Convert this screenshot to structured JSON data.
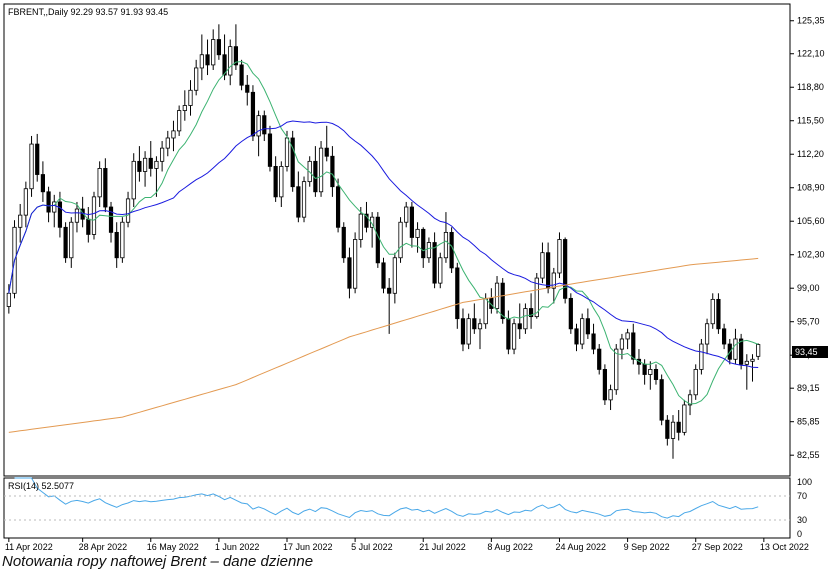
{
  "caption": "Notowania ropy naftowej Brent – dane dzienne",
  "colors": {
    "bull": "#ffffff",
    "bear": "#000000",
    "ma_short": "#3cb371",
    "ma_mid": "#1a1adf",
    "ma_long": "#e39a52",
    "rsi": "#4aa8e8"
  },
  "chart_data": [
    {
      "type": "candlestick",
      "header": "FBRENT,,Daily  92.29 93.57 91.93 93.45",
      "last_price_label": "93,45",
      "ylim": [
        80.5,
        127.0
      ],
      "y_ticks": [
        "125,35",
        "122,10",
        "118,80",
        "115,50",
        "112,20",
        "108,90",
        "105,60",
        "102,30",
        "99,00",
        "95,70",
        "92,40",
        "89,15",
        "85,85",
        "82,55"
      ],
      "x_ticks": [
        "11 Apr 2022",
        "28 Apr 2022",
        "16 May 2022",
        "1 Jun 2022",
        "17 Jun 2022",
        "5 Jul 2022",
        "21 Jul 2022",
        "8 Aug 2022",
        "24 Aug 2022",
        "9 Sep 2022",
        "27 Sep 2022",
        "13 Oct 2022"
      ],
      "x_tick_index": [
        0,
        13,
        25,
        37,
        49,
        61,
        73,
        85,
        97,
        109,
        121,
        133
      ],
      "ohlc": [
        [
          97.2,
          99.4,
          96.5,
          98.5
        ],
        [
          98.5,
          105.7,
          98.0,
          105.0
        ],
        [
          105.0,
          107.3,
          103.5,
          106.2
        ],
        [
          106.2,
          109.5,
          105.0,
          108.8
        ],
        [
          108.8,
          114.0,
          108.0,
          113.2
        ],
        [
          113.2,
          114.2,
          109.5,
          110.2
        ],
        [
          110.2,
          111.5,
          107.5,
          108.5
        ],
        [
          108.5,
          109.0,
          105.5,
          106.5
        ],
        [
          106.5,
          108.2,
          105.0,
          107.5
        ],
        [
          107.5,
          108.5,
          104.0,
          105.0
        ],
        [
          105.0,
          105.5,
          101.5,
          102.0
        ],
        [
          102.0,
          106.0,
          101.0,
          105.5
        ],
        [
          105.5,
          107.5,
          104.5,
          106.8
        ],
        [
          106.8,
          108.0,
          105.0,
          105.8
        ],
        [
          105.8,
          107.0,
          103.5,
          104.3
        ],
        [
          104.3,
          108.5,
          103.8,
          108.0
        ],
        [
          108.0,
          111.5,
          107.0,
          110.8
        ],
        [
          110.8,
          111.8,
          106.5,
          107.0
        ],
        [
          107.0,
          107.5,
          103.5,
          104.5
        ],
        [
          104.5,
          105.5,
          101.0,
          102.0
        ],
        [
          102.0,
          106.0,
          101.5,
          105.5
        ],
        [
          105.5,
          108.5,
          105.0,
          107.8
        ],
        [
          107.8,
          112.3,
          107.0,
          111.5
        ],
        [
          111.5,
          113.0,
          109.5,
          110.5
        ],
        [
          110.5,
          112.5,
          109.0,
          111.8
        ],
        [
          111.8,
          113.5,
          110.0,
          110.8
        ],
        [
          110.8,
          112.0,
          108.0,
          111.5
        ],
        [
          111.5,
          113.5,
          110.5,
          112.8
        ],
        [
          112.8,
          114.5,
          112.0,
          113.8
        ],
        [
          113.8,
          115.5,
          112.5,
          114.5
        ],
        [
          114.5,
          117.0,
          114.0,
          116.5
        ],
        [
          116.5,
          118.5,
          115.5,
          117.0
        ],
        [
          117.0,
          119.5,
          116.0,
          118.5
        ],
        [
          118.5,
          121.5,
          118.0,
          120.7
        ],
        [
          120.7,
          124.0,
          119.5,
          122.0
        ],
        [
          122.0,
          123.5,
          120.0,
          121.0
        ],
        [
          121.0,
          124.5,
          120.5,
          123.5
        ],
        [
          123.5,
          125.0,
          121.5,
          122.0
        ],
        [
          122.0,
          124.0,
          119.5,
          120.0
        ],
        [
          120.0,
          123.5,
          119.0,
          122.8
        ],
        [
          122.8,
          125.0,
          120.5,
          121.0
        ],
        [
          121.0,
          121.5,
          118.5,
          119.0
        ],
        [
          119.0,
          120.0,
          117.0,
          118.3
        ],
        [
          118.3,
          119.0,
          113.5,
          114.0
        ],
        [
          114.0,
          116.5,
          112.0,
          116.0
        ],
        [
          116.0,
          116.5,
          113.5,
          114.2
        ],
        [
          114.2,
          115.0,
          110.5,
          111.0
        ],
        [
          111.0,
          112.0,
          107.5,
          108.0
        ],
        [
          108.0,
          111.5,
          107.0,
          111.0
        ],
        [
          111.0,
          114.5,
          110.5,
          113.8
        ],
        [
          113.8,
          114.5,
          108.5,
          109.0
        ],
        [
          109.0,
          110.5,
          105.5,
          106.0
        ],
        [
          106.0,
          110.0,
          105.5,
          109.5
        ],
        [
          109.5,
          112.0,
          109.0,
          111.5
        ],
        [
          111.5,
          113.0,
          108.0,
          108.5
        ],
        [
          108.5,
          113.5,
          108.0,
          112.8
        ],
        [
          112.8,
          115.0,
          111.5,
          112.0
        ],
        [
          112.0,
          113.0,
          108.0,
          109.0
        ],
        [
          109.0,
          109.8,
          104.5,
          105.0
        ],
        [
          105.0,
          105.5,
          101.5,
          102.0
        ],
        [
          102.0,
          103.0,
          98.0,
          99.0
        ],
        [
          99.0,
          104.5,
          98.5,
          103.8
        ],
        [
          103.8,
          107.0,
          103.0,
          106.3
        ],
        [
          106.3,
          107.5,
          104.5,
          105.0
        ],
        [
          105.0,
          106.5,
          103.0,
          106.0
        ],
        [
          106.0,
          106.5,
          101.0,
          101.5
        ],
        [
          101.5,
          102.0,
          98.5,
          99.0
        ],
        [
          99.0,
          100.0,
          94.5,
          98.5
        ],
        [
          98.5,
          102.5,
          97.5,
          102.0
        ],
        [
          102.0,
          106.0,
          101.5,
          105.5
        ],
        [
          105.5,
          107.5,
          105.0,
          107.0
        ],
        [
          107.0,
          107.5,
          103.0,
          104.0
        ],
        [
          104.0,
          105.5,
          102.5,
          104.8
        ],
        [
          104.8,
          105.0,
          101.0,
          102.0
        ],
        [
          102.0,
          104.0,
          101.5,
          103.5
        ],
        [
          103.5,
          104.5,
          99.0,
          99.5
        ],
        [
          99.5,
          102.5,
          99.0,
          102.0
        ],
        [
          102.0,
          106.5,
          101.5,
          104.5
        ],
        [
          104.5,
          105.0,
          100.5,
          101.0
        ],
        [
          101.0,
          101.5,
          95.0,
          96.0
        ],
        [
          96.0,
          97.0,
          92.8,
          93.5
        ],
        [
          93.5,
          96.5,
          93.0,
          96.0
        ],
        [
          96.0,
          97.5,
          94.5,
          95.0
        ],
        [
          95.0,
          96.0,
          93.0,
          95.5
        ],
        [
          95.5,
          98.5,
          95.0,
          98.0
        ],
        [
          98.0,
          99.0,
          96.5,
          97.0
        ],
        [
          97.0,
          100.2,
          96.5,
          99.5
        ],
        [
          99.5,
          100.0,
          95.5,
          96.0
        ],
        [
          96.0,
          96.8,
          92.5,
          93.0
        ],
        [
          93.0,
          96.0,
          92.5,
          95.5
        ],
        [
          95.5,
          97.5,
          94.0,
          95.0
        ],
        [
          95.0,
          97.5,
          94.5,
          97.0
        ],
        [
          97.0,
          98.5,
          95.0,
          96.2
        ],
        [
          96.2,
          100.5,
          96.0,
          100.0
        ],
        [
          100.0,
          103.5,
          99.5,
          102.5
        ],
        [
          102.5,
          103.5,
          98.5,
          99.0
        ],
        [
          99.0,
          101.0,
          97.5,
          100.5
        ],
        [
          100.5,
          104.5,
          100.0,
          103.8
        ],
        [
          103.8,
          104.0,
          97.5,
          98.0
        ],
        [
          98.0,
          98.5,
          94.5,
          95.0
        ],
        [
          95.0,
          95.5,
          92.8,
          93.5
        ],
        [
          93.5,
          96.5,
          93.0,
          96.0
        ],
        [
          96.0,
          97.0,
          94.0,
          94.5
        ],
        [
          94.5,
          95.5,
          92.5,
          93.0
        ],
        [
          93.0,
          93.5,
          90.5,
          91.0
        ],
        [
          91.0,
          91.5,
          87.5,
          88.0
        ],
        [
          88.0,
          89.5,
          87.0,
          89.0
        ],
        [
          89.0,
          93.5,
          88.5,
          93.0
        ],
        [
          93.0,
          94.5,
          92.0,
          94.0
        ],
        [
          94.0,
          95.0,
          93.0,
          94.6
        ],
        [
          94.6,
          95.5,
          91.5,
          92.0
        ],
        [
          92.0,
          93.0,
          90.5,
          91.5
        ],
        [
          91.5,
          92.0,
          89.5,
          90.5
        ],
        [
          90.5,
          91.8,
          89.0,
          91.0
        ],
        [
          91.0,
          91.5,
          89.5,
          90.0
        ],
        [
          90.0,
          90.5,
          85.5,
          86.0
        ],
        [
          86.0,
          86.5,
          83.5,
          84.2
        ],
        [
          84.2,
          86.5,
          82.2,
          85.8
        ],
        [
          85.8,
          87.0,
          84.0,
          84.8
        ],
        [
          84.8,
          88.0,
          84.5,
          87.5
        ],
        [
          87.5,
          89.0,
          86.5,
          88.5
        ],
        [
          88.5,
          91.5,
          88.0,
          91.0
        ],
        [
          91.0,
          94.0,
          90.5,
          93.5
        ],
        [
          93.5,
          96.0,
          92.5,
          95.5
        ],
        [
          95.5,
          98.5,
          95.0,
          97.9
        ],
        [
          97.9,
          98.5,
          94.5,
          95.0
        ],
        [
          95.0,
          95.5,
          93.0,
          93.5
        ],
        [
          93.5,
          94.0,
          91.5,
          92.0
        ],
        [
          92.0,
          95.0,
          91.5,
          94.0
        ],
        [
          94.0,
          94.5,
          91.0,
          91.5
        ],
        [
          91.5,
          92.5,
          89.0,
          91.8
        ],
        [
          91.8,
          92.5,
          89.8,
          92.0
        ],
        [
          92.29,
          93.57,
          91.93,
          93.45
        ]
      ],
      "ma_short_period": 9,
      "ma_mid_period": 30,
      "ma_long_anchors": [
        [
          0,
          84.8
        ],
        [
          20,
          86.3
        ],
        [
          40,
          89.5
        ],
        [
          60,
          94.2
        ],
        [
          80,
          97.6
        ],
        [
          100,
          99.5
        ],
        [
          120,
          101.3
        ],
        [
          137,
          102.2
        ]
      ]
    },
    {
      "type": "line",
      "header": "RSI(14) 52.5077",
      "ylim": [
        0,
        100
      ],
      "y_ticks": [
        "100",
        "70",
        "30",
        "0"
      ],
      "levels": [
        70,
        30
      ],
      "period": 14
    }
  ]
}
